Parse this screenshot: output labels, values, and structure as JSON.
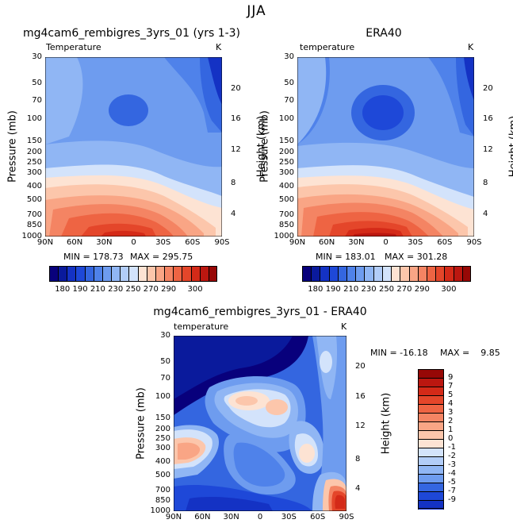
{
  "figure": {
    "season": "JJA",
    "colors": {
      "temp_levels": [
        "#08007c",
        "#0a1a9c",
        "#1432c4",
        "#1e48d8",
        "#3466e0",
        "#4f82ea",
        "#6e9cef",
        "#90b6f4",
        "#b2cdf8",
        "#d3e3fb",
        "#fde3d3",
        "#fcc6ab",
        "#f9a585",
        "#f48463",
        "#ee6443",
        "#e4462a",
        "#d42a18",
        "#bb1710",
        "#970806"
      ],
      "diff_levels": [
        "#08007c",
        "#0a1a9c",
        "#1432c4",
        "#1e48d8",
        "#3466e0",
        "#4f82ea",
        "#6e9cef",
        "#90b6f4",
        "#b2cdf8",
        "#d3e3fb",
        "#fde3d3",
        "#fcc6ab",
        "#f9a585",
        "#f48463",
        "#ee6443",
        "#e4462a",
        "#d42a18",
        "#bb1710",
        "#970806"
      ]
    }
  },
  "chart_data": [
    {
      "type": "heatmap",
      "title": "mg4cam6_rembigres_3yrs_01 (yrs 1-3)",
      "subtitle_left": "Temperature",
      "subtitle_right": "K",
      "xlabel": "",
      "ylabel": "Pressure (mb)",
      "ylabel_right": "Height (km)",
      "x_ticks": [
        "90N",
        "60N",
        "30N",
        "0",
        "30S",
        "60S",
        "90S"
      ],
      "y_ticks": [
        "30",
        "50",
        "70",
        "100",
        "150",
        "200",
        "250",
        "300",
        "400",
        "500",
        "700",
        "850",
        "1000"
      ],
      "y_ticks_right": [
        "20",
        "16",
        "12",
        "8",
        "4"
      ],
      "min_label": "MIN = 178.73",
      "max_label": "MAX = 295.75",
      "colorbar_ticks": [
        "180",
        "190",
        "210",
        "230",
        "250",
        "270",
        "290",
        "300"
      ]
    },
    {
      "type": "heatmap",
      "title": "ERA40",
      "subtitle_left": "temperature",
      "subtitle_right": "K",
      "xlabel": "",
      "ylabel": "Pressure (mb)",
      "ylabel_right": "Height (km)",
      "x_ticks": [
        "90N",
        "60N",
        "30N",
        "0",
        "30S",
        "60S",
        "90S"
      ],
      "y_ticks": [
        "30",
        "50",
        "70",
        "100",
        "150",
        "200",
        "250",
        "300",
        "400",
        "500",
        "700",
        "850",
        "1000"
      ],
      "y_ticks_right": [
        "20",
        "16",
        "12",
        "8",
        "4"
      ],
      "min_label": "MIN = 183.01",
      "max_label": "MAX = 301.28",
      "colorbar_ticks": [
        "180",
        "190",
        "210",
        "230",
        "250",
        "270",
        "290",
        "300"
      ]
    },
    {
      "type": "heatmap",
      "title": "mg4cam6_rembigres_3yrs_01 - ERA40",
      "subtitle_left": "temperature",
      "subtitle_right": "K",
      "xlabel": "",
      "ylabel": "Pressure (mb)",
      "ylabel_right": "Height (km)",
      "x_ticks": [
        "90N",
        "60N",
        "30N",
        "0",
        "30S",
        "60S",
        "90S"
      ],
      "y_ticks": [
        "30",
        "50",
        "70",
        "100",
        "150",
        "200",
        "250",
        "300",
        "400",
        "500",
        "700",
        "850",
        "1000"
      ],
      "y_ticks_right": [
        "20",
        "16",
        "12",
        "8",
        "4"
      ],
      "min_label": "MIN = -16.18",
      "max_label": "MAX =    9.85",
      "colorbar_ticks": [
        "9",
        "7",
        "5",
        "4",
        "3",
        "2",
        "1",
        "0",
        "-1",
        "-2",
        "-3",
        "-4",
        "-5",
        "-7",
        "-9"
      ]
    }
  ]
}
